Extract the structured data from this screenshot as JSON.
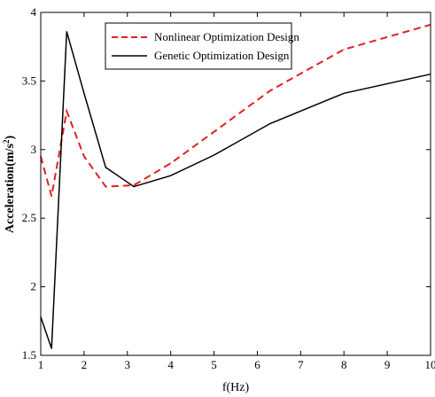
{
  "chart_data": {
    "type": "line",
    "xlabel": "f(Hz)",
    "ylabel": "Acceleration(m/s²)",
    "ylabel_parts": {
      "main": "Acceleration(m/s",
      "sup": "2",
      "close": ")"
    },
    "xlim": [
      1,
      10
    ],
    "ylim": [
      1.5,
      4
    ],
    "x_ticks": [
      1,
      2,
      3,
      4,
      5,
      6,
      7,
      8,
      9,
      10
    ],
    "y_ticks": [
      1.5,
      2,
      2.5,
      3,
      3.5,
      4
    ],
    "y_tick_labels": [
      "1.5",
      "2",
      "2.5",
      "3",
      "3.5",
      "4"
    ],
    "grid": false,
    "legend_position": "top-center",
    "series": [
      {
        "name": "Nonlinear Optimization Design",
        "color": "#e02020",
        "style": "dashed",
        "x": [
          1,
          1.25,
          1.6,
          2,
          2.5,
          3.15,
          4,
          5,
          6.3,
          8,
          10
        ],
        "y": [
          2.95,
          2.66,
          3.28,
          2.95,
          2.73,
          2.74,
          2.9,
          3.13,
          3.43,
          3.73,
          3.91
        ]
      },
      {
        "name": "Genetic Optimization Design",
        "color": "#000000",
        "style": "solid",
        "x": [
          1,
          1.25,
          1.6,
          2,
          2.5,
          3.15,
          4,
          5,
          6.3,
          8,
          10
        ],
        "y": [
          1.78,
          1.55,
          3.86,
          3.41,
          2.87,
          2.73,
          2.81,
          2.96,
          3.19,
          3.41,
          3.55
        ]
      }
    ]
  }
}
